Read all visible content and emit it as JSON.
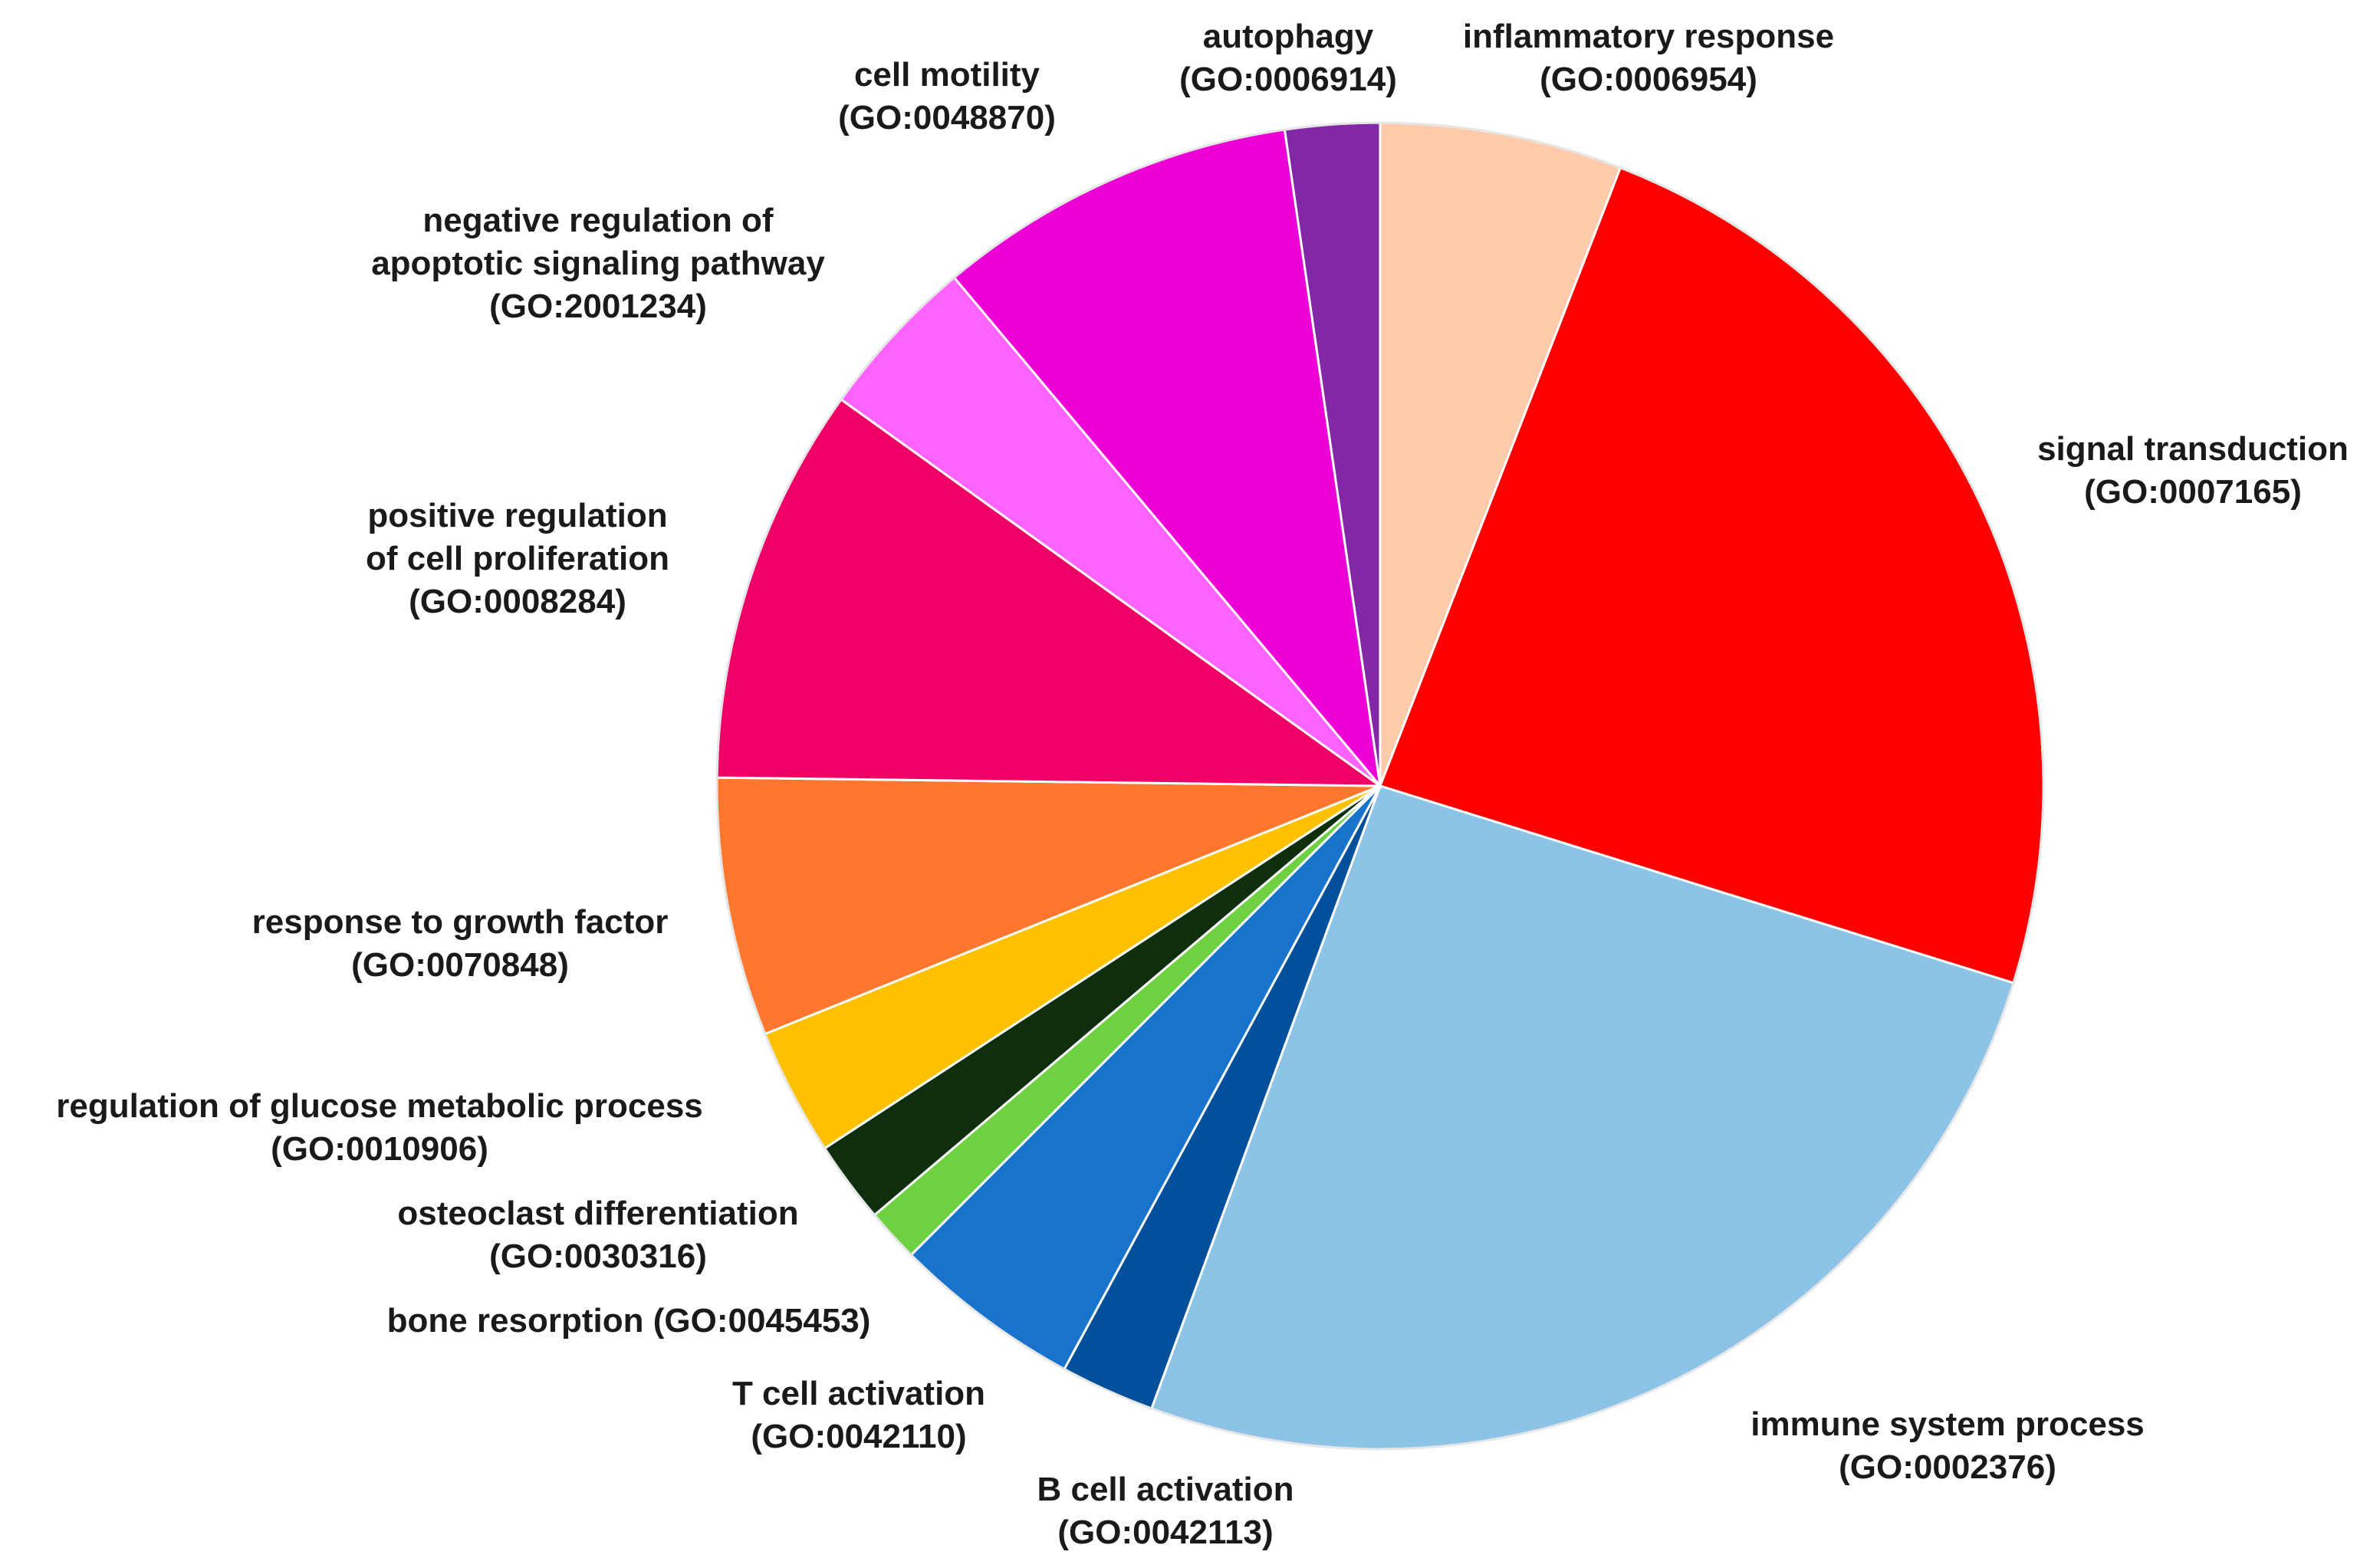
{
  "chart_data": {
    "type": "pie",
    "title": "",
    "start": "top",
    "direction": "clockwise",
    "slices": [
      {
        "label": "inflammatory response",
        "go": "(GO:0006954)",
        "value": 5.9,
        "color": "#FFCBAA"
      },
      {
        "label": "signal transduction",
        "go": "(GO:0007165)",
        "value": 23.9,
        "color": "#FF0000"
      },
      {
        "label": "immune system process",
        "go": "(GO:0002376)",
        "value": 25.8,
        "color": "#8EC3E8"
      },
      {
        "label": "B cell activation",
        "go": "(GO:0042113)",
        "value": 2.3,
        "color": "#02509C"
      },
      {
        "label": "T cell activation",
        "go": "(GO:0042110)",
        "value": 4.6,
        "color": "#1873CC"
      },
      {
        "label": "bone resorption",
        "go": "(GO:0045453)",
        "value": 1.3,
        "color": "#6FD141"
      },
      {
        "label": "osteoclast differentiation",
        "go": "(GO:0030316)",
        "value": 2.0,
        "color": "#0E2E0E"
      },
      {
        "label": "regulation of glucose metabolic process",
        "go": "(GO:0010906)",
        "value": 3.1,
        "color": "#FFC000"
      },
      {
        "label": "response to growth factor",
        "go": "(GO:0070848)",
        "value": 6.3,
        "color": "#FF772F"
      },
      {
        "label": "positive regulation of cell proliferation",
        "go": "(GO:0008284)",
        "value": 9.7,
        "color": "#EE0066"
      },
      {
        "label": "negative regulation of apoptotic signaling pathway",
        "go": "(GO:2001234)",
        "value": 4.0,
        "color": "#FF63FF"
      },
      {
        "label": "cell motility",
        "go": "(GO:0048870)",
        "value": 8.8,
        "color": "#EC00D6"
      },
      {
        "label": "autophagy",
        "go": "(GO:0006914)",
        "value": 2.3,
        "color": "#8228A6"
      }
    ]
  }
}
